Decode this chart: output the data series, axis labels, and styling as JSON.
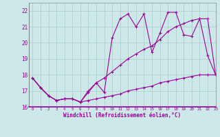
{
  "xlabel": "Windchill (Refroidissement éolien,°C)",
  "background_color": "#cce8e8",
  "grid_color": "#aacccc",
  "line_color": "#990099",
  "xlim": [
    -0.5,
    23
  ],
  "ylim": [
    16,
    22.5
  ],
  "yticks": [
    16,
    17,
    18,
    19,
    20,
    21,
    22
  ],
  "xticks": [
    0,
    1,
    2,
    3,
    4,
    5,
    6,
    7,
    8,
    9,
    10,
    11,
    12,
    13,
    14,
    15,
    16,
    17,
    18,
    19,
    20,
    21,
    22,
    23
  ],
  "series_low_x": [
    0,
    1,
    2,
    3,
    4,
    5,
    6,
    7,
    8,
    9,
    10,
    11,
    12,
    13,
    14,
    15,
    16,
    17,
    18,
    19,
    20,
    21,
    22,
    23
  ],
  "series_low_y": [
    17.8,
    17.2,
    16.7,
    16.4,
    16.5,
    16.5,
    16.3,
    16.4,
    16.5,
    16.6,
    16.7,
    16.8,
    17.0,
    17.1,
    17.2,
    17.3,
    17.5,
    17.6,
    17.7,
    17.8,
    17.9,
    18.0,
    18.0,
    18.0
  ],
  "series_high_x": [
    0,
    1,
    2,
    3,
    4,
    5,
    6,
    7,
    8,
    9,
    10,
    11,
    12,
    13,
    14,
    15,
    16,
    17,
    18,
    19,
    20,
    21,
    22,
    23
  ],
  "series_high_y": [
    17.8,
    17.2,
    16.7,
    16.4,
    16.5,
    16.5,
    16.3,
    16.9,
    17.5,
    17.8,
    18.2,
    18.6,
    19.0,
    19.3,
    19.6,
    19.8,
    20.2,
    20.7,
    21.0,
    21.2,
    21.4,
    21.5,
    21.5,
    18.0
  ],
  "series_jagged_x": [
    0,
    1,
    2,
    3,
    4,
    5,
    6,
    7,
    8,
    9,
    10,
    11,
    12,
    13,
    14,
    15,
    16,
    17,
    18,
    19,
    20,
    21,
    22,
    23
  ],
  "series_jagged_y": [
    17.8,
    17.2,
    16.7,
    16.4,
    16.5,
    16.5,
    16.3,
    17.0,
    17.5,
    16.9,
    20.3,
    21.5,
    21.8,
    21.0,
    21.8,
    19.4,
    20.6,
    21.9,
    21.9,
    20.5,
    20.4,
    21.5,
    19.2,
    18.0
  ]
}
